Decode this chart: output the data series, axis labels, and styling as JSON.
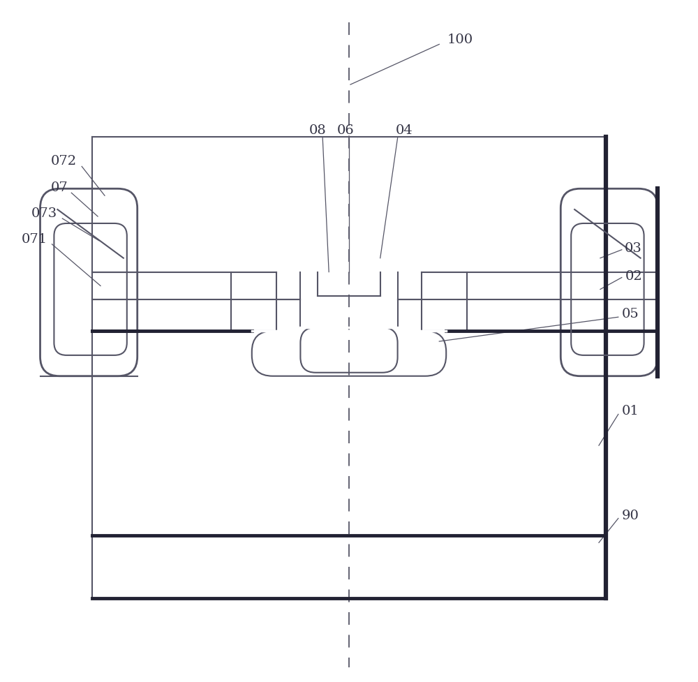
{
  "bg_color": "#ffffff",
  "lc": "#555566",
  "tlc": "#222233",
  "label_color": "#333344",
  "fig_width": 10.0,
  "fig_height": 9.78,
  "dpi": 100
}
